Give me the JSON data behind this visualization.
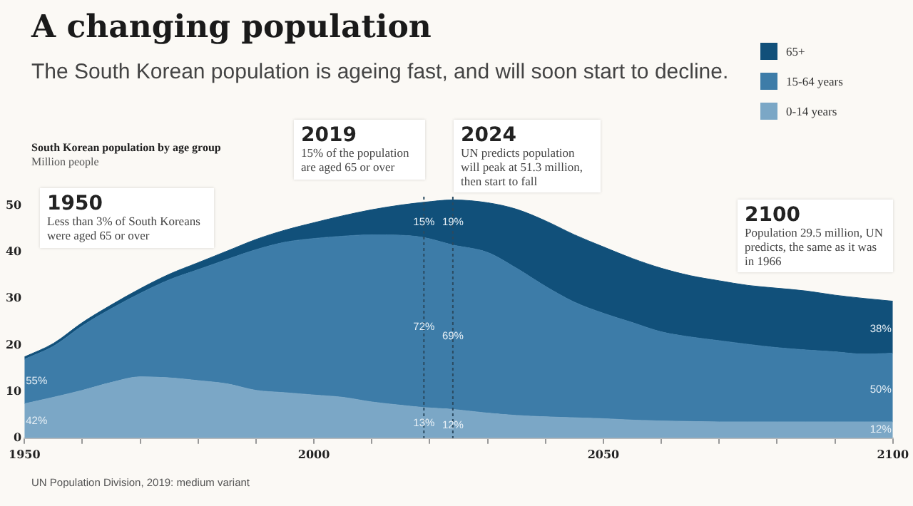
{
  "chart_data": {
    "type": "area",
    "stacked": true,
    "title": "A changing population",
    "subtitle": "The South Korean population is ageing fast, and will soon start to decline.",
    "ylabel": "Million people",
    "x": [
      1950,
      1955,
      1960,
      1965,
      1970,
      1975,
      1980,
      1985,
      1990,
      1995,
      2000,
      2005,
      2010,
      2015,
      2019,
      2024,
      2030,
      2035,
      2040,
      2045,
      2050,
      2055,
      2060,
      2065,
      2070,
      2075,
      2080,
      2085,
      2090,
      2095,
      2100
    ],
    "series": [
      {
        "name": "0-14 years",
        "color": "#7ba7c6",
        "values": [
          7.4,
          8.8,
          10.3,
          12.0,
          13.2,
          13.0,
          12.4,
          11.7,
          10.3,
          9.8,
          9.3,
          8.8,
          7.8,
          7.1,
          6.6,
          6.2,
          5.4,
          4.9,
          4.6,
          4.4,
          4.2,
          3.9,
          3.7,
          3.6,
          3.5,
          3.5,
          3.5,
          3.5,
          3.5,
          3.5,
          3.5
        ]
      },
      {
        "name": "15-64 years",
        "color": "#3d7ca8",
        "values": [
          9.6,
          11.0,
          13.9,
          15.9,
          18.0,
          21.1,
          23.9,
          26.8,
          30.3,
          32.4,
          33.7,
          34.7,
          36.0,
          36.6,
          36.6,
          35.4,
          34.6,
          31.7,
          28.1,
          24.9,
          22.7,
          21.0,
          19.2,
          18.2,
          17.5,
          16.7,
          16.0,
          15.5,
          15.1,
          14.6,
          14.8
        ]
      },
      {
        "name": "65+",
        "color": "#11507a",
        "values": [
          0.5,
          0.6,
          0.7,
          0.8,
          1.0,
          1.2,
          1.5,
          1.8,
          2.2,
          2.6,
          3.4,
          4.4,
          5.4,
          6.5,
          7.6,
          9.7,
          10.7,
          12.7,
          14.1,
          14.5,
          14.3,
          13.8,
          13.7,
          13.2,
          12.9,
          12.7,
          12.8,
          12.7,
          12.2,
          12.0,
          11.2
        ]
      }
    ],
    "xlim": [
      1950,
      2100
    ],
    "xticks": [
      1950,
      {
        "value": 1960,
        "label": null
      },
      {
        "value": 1970,
        "label": null
      },
      {
        "value": 1980,
        "label": null
      },
      {
        "value": 1990,
        "label": null
      },
      2000,
      {
        "value": 2010,
        "label": null
      },
      {
        "value": 2020,
        "label": null
      },
      {
        "value": 2030,
        "label": null
      },
      {
        "value": 2040,
        "label": null
      },
      2050,
      {
        "value": 2060,
        "label": null
      },
      {
        "value": 2070,
        "label": null
      },
      {
        "value": 2080,
        "label": null
      },
      {
        "value": 2090,
        "label": null
      },
      2100
    ],
    "ylim": [
      0,
      52
    ],
    "yticks": [
      0,
      10,
      20,
      30,
      40,
      50
    ],
    "grid": false,
    "legend": "top right",
    "marker": "none",
    "ref_lines": [
      {
        "axis": "x",
        "value": 2019,
        "label": null,
        "color": "#2a4a60",
        "line_style": "dotted"
      },
      {
        "axis": "x",
        "value": 2024,
        "label": null,
        "color": "#2a4a60",
        "line_style": "dotted"
      }
    ],
    "annotations": [
      "South Korean population by age group",
      "UN Population Division, 2019: medium variant",
      "1950",
      "Less than 3% of South Koreans were aged 65 or over",
      "2019",
      "15% of the population are aged 65 or over",
      "2024",
      "UN predicts population will peak at 51.3 million, then start to fall",
      "2100",
      "Population 29.5 million, UN predicts, the same as it was in 1966",
      {
        "text": "55%",
        "x": 1950,
        "y": 12.2
      },
      {
        "text": "42%",
        "x": 1950,
        "y": 3.7
      },
      {
        "text": "15%",
        "x": 2019,
        "y": 46.5
      },
      {
        "text": "72%",
        "x": 2019,
        "y": 24
      },
      {
        "text": "13%",
        "x": 2019,
        "y": 3.2
      },
      {
        "text": "19%",
        "x": 2024,
        "y": 46.5
      },
      {
        "text": "69%",
        "x": 2024,
        "y": 22
      },
      {
        "text": "12%",
        "x": 2024,
        "y": 2.8
      },
      {
        "text": "38%",
        "x": 2100,
        "y": 23.5
      },
      {
        "text": "50%",
        "x": 2100,
        "y": 10.5
      },
      {
        "text": "12%",
        "x": 2100,
        "y": 1.8
      }
    ]
  }
}
